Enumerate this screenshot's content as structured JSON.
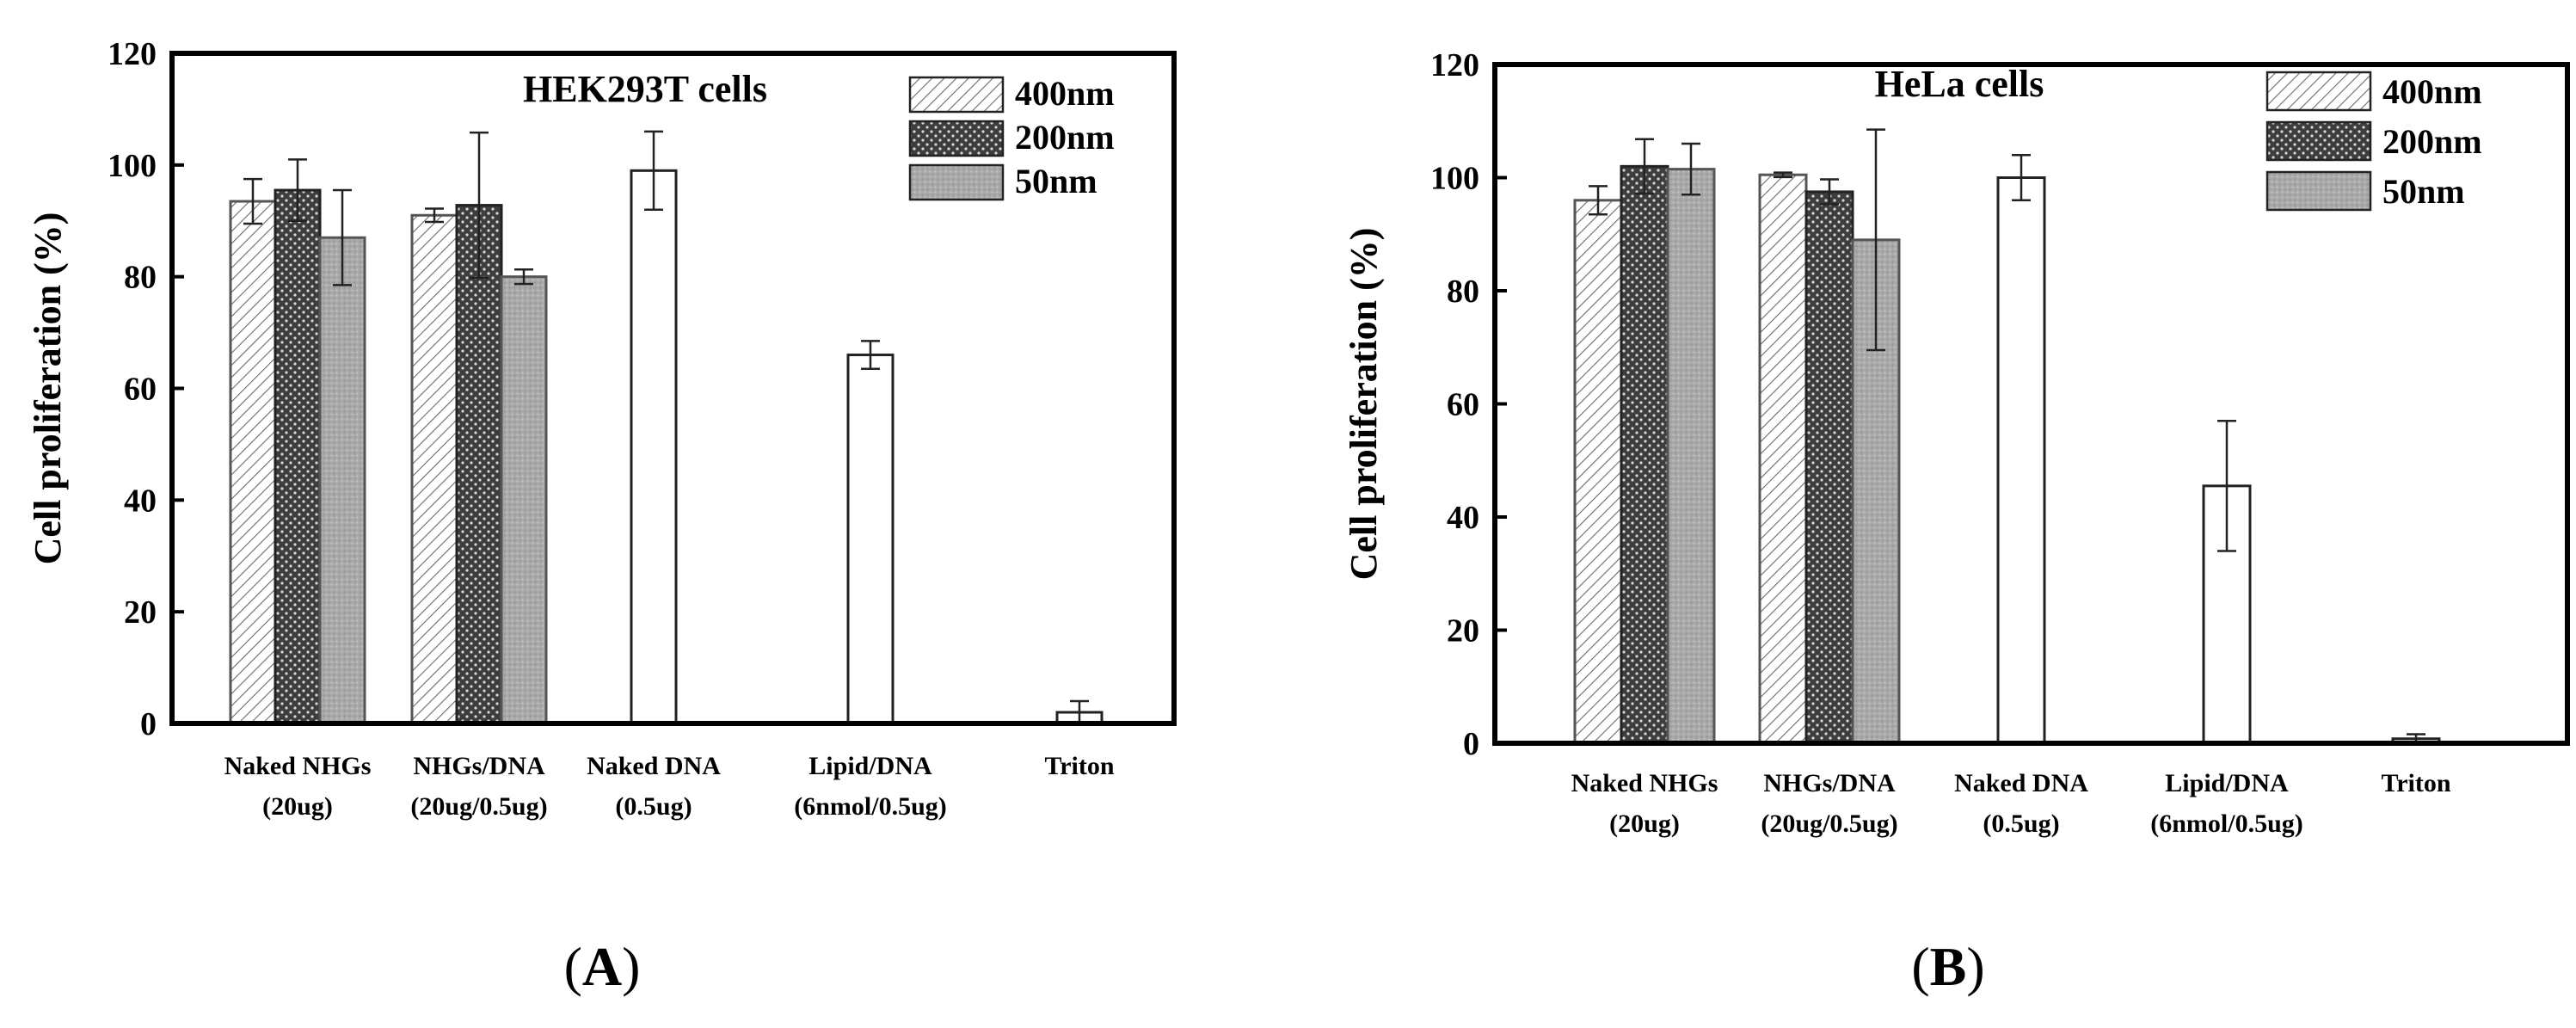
{
  "chart_data": [
    {
      "id": "A",
      "type": "bar",
      "title": "HEK293T cells",
      "xlabel": "",
      "ylabel": "Cell proliferation (%)",
      "ylim": [
        0,
        120
      ],
      "yticks": [
        0,
        20,
        40,
        60,
        80,
        100,
        120
      ],
      "legend_position": "top-right",
      "categories": [
        {
          "line1": "Naked NHGs",
          "line2": "(20ug)"
        },
        {
          "line1": "NHGs/DNA",
          "line2": "(20ug/0.5ug)"
        },
        {
          "line1": "Naked DNA",
          "line2": "(0.5ug)"
        },
        {
          "line1": "Lipid/DNA",
          "line2": "(6nmol/0.5ug)"
        },
        {
          "line1": "Triton",
          "line2": ""
        }
      ],
      "series": [
        {
          "name": "400nm",
          "pattern": "hatch",
          "values": [
            93.5,
            91,
            null,
            null,
            null
          ],
          "errors": [
            4,
            1.2,
            null,
            null,
            null
          ]
        },
        {
          "name": "200nm",
          "pattern": "dots",
          "values": [
            95.5,
            92.8,
            null,
            null,
            null
          ],
          "errors": [
            5.5,
            13,
            null,
            null,
            null
          ]
        },
        {
          "name": "50nm",
          "pattern": "gray",
          "values": [
            87,
            80,
            null,
            null,
            null
          ],
          "errors": [
            8.5,
            1.3,
            null,
            null,
            null
          ]
        },
        {
          "name": "",
          "pattern": "open",
          "values": [
            null,
            null,
            99,
            66,
            2
          ],
          "errors": [
            null,
            null,
            7,
            2.5,
            2
          ]
        }
      ]
    },
    {
      "id": "B",
      "type": "bar",
      "title": "HeLa cells",
      "xlabel": "",
      "ylabel": "Cell proliferation (%)",
      "ylim": [
        0,
        120
      ],
      "yticks": [
        0,
        20,
        40,
        60,
        80,
        100,
        120
      ],
      "legend_position": "top-right",
      "categories": [
        {
          "line1": "Naked NHGs",
          "line2": "(20ug)"
        },
        {
          "line1": "NHGs/DNA",
          "line2": "(20ug/0.5ug)"
        },
        {
          "line1": "Naked DNA",
          "line2": "(0.5ug)"
        },
        {
          "line1": "Lipid/DNA",
          "line2": "(6nmol/0.5ug)"
        },
        {
          "line1": "Triton",
          "line2": ""
        }
      ],
      "series": [
        {
          "name": "400nm",
          "pattern": "hatch",
          "values": [
            96,
            100.5,
            null,
            null,
            null
          ],
          "errors": [
            2.5,
            0.4,
            null,
            null,
            null
          ]
        },
        {
          "name": "200nm",
          "pattern": "dots",
          "values": [
            102,
            97.5,
            null,
            null,
            null
          ],
          "errors": [
            4.8,
            2.2,
            null,
            null,
            null
          ]
        },
        {
          "name": "50nm",
          "pattern": "gray",
          "values": [
            101.5,
            89,
            null,
            null,
            null
          ],
          "errors": [
            4.5,
            19.5,
            null,
            null,
            null
          ]
        },
        {
          "name": "",
          "pattern": "open",
          "values": [
            null,
            null,
            100,
            45.5,
            0.8
          ],
          "errors": [
            null,
            null,
            4,
            11.5,
            0.8
          ]
        }
      ]
    }
  ],
  "panel_labels": [
    {
      "open": "(",
      "letter": "A",
      "close": ")"
    },
    {
      "open": "(",
      "letter": "B",
      "close": ")"
    }
  ]
}
